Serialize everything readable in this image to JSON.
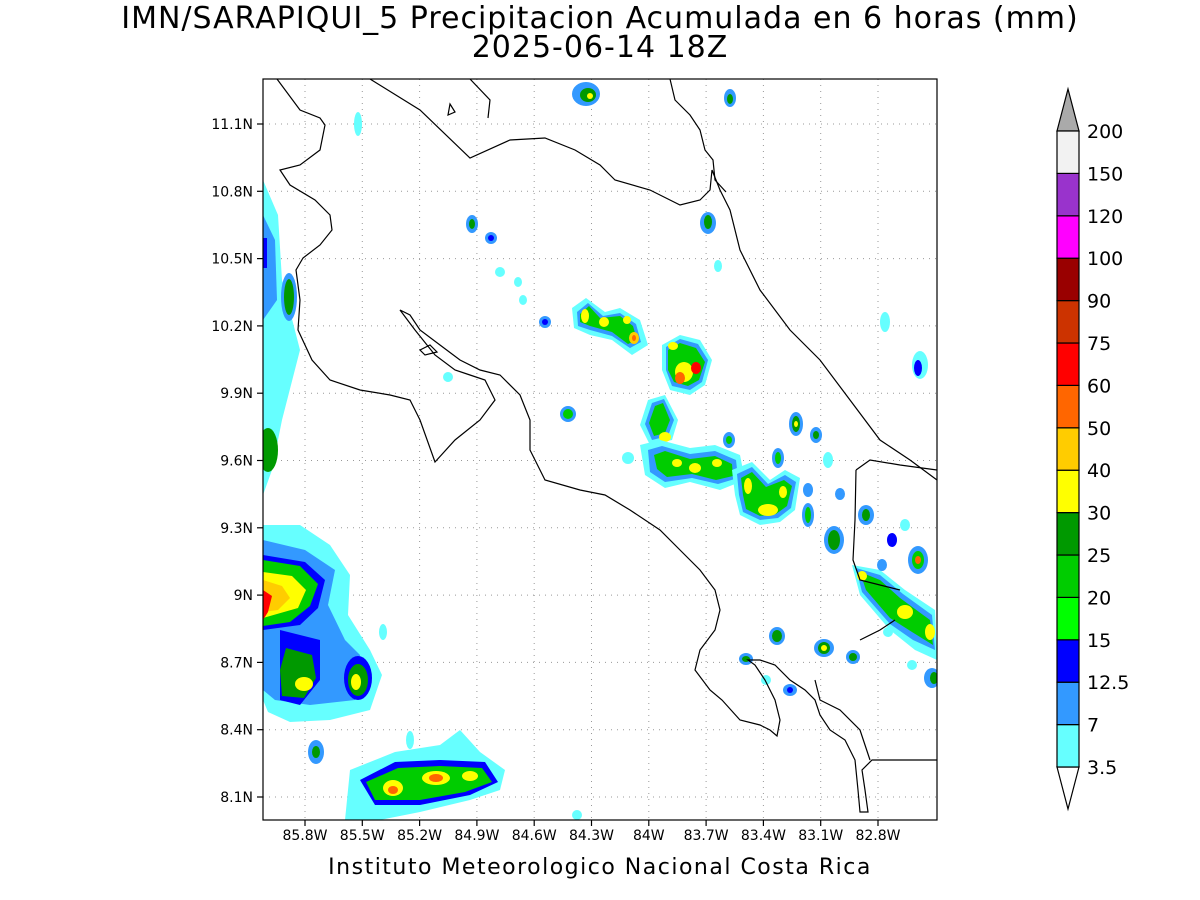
{
  "title_line1": "IMN/SARAPIQUI_5 Precipitacion Acumulada en 6 horas (mm)",
  "title_line2": "2025-06-14 18Z",
  "footer": "Instituto Meteorologico Nacional Costa Rica",
  "axes": {
    "lat_labels": [
      "11.1N",
      "10.8N",
      "10.5N",
      "10.2N",
      "9.9N",
      "9.6N",
      "9.3N",
      "9N",
      "8.7N",
      "8.4N",
      "8.1N"
    ],
    "lon_labels": [
      "85.8W",
      "85.5W",
      "85.2W",
      "84.9W",
      "84.6W",
      "84.3W",
      "84W",
      "83.7W",
      "83.4W",
      "83.1W",
      "82.8W"
    ]
  },
  "colorbar": {
    "levels": [
      {
        "label": "3.5",
        "color": "#66ffff"
      },
      {
        "label": "7",
        "color": "#3399ff"
      },
      {
        "label": "12.5",
        "color": "#0000ff"
      },
      {
        "label": "15",
        "color": "#00ff00"
      },
      {
        "label": "20",
        "color": "#00cc00"
      },
      {
        "label": "25",
        "color": "#009900"
      },
      {
        "label": "30",
        "color": "#ffff00"
      },
      {
        "label": "40",
        "color": "#ffcc00"
      },
      {
        "label": "50",
        "color": "#ff6600"
      },
      {
        "label": "60",
        "color": "#ff0000"
      },
      {
        "label": "75",
        "color": "#cc3300"
      },
      {
        "label": "90",
        "color": "#990000"
      },
      {
        "label": "100",
        "color": "#ff00ff"
      },
      {
        "label": "120",
        "color": "#9933cc"
      },
      {
        "label": "150",
        "color": "#f2f2f2"
      },
      {
        "label": "200",
        "color": "#aaaaaa"
      }
    ]
  },
  "icons": {
    "colorbar_top": "triangle-up-icon",
    "colorbar_bottom": "triangle-down-icon"
  }
}
